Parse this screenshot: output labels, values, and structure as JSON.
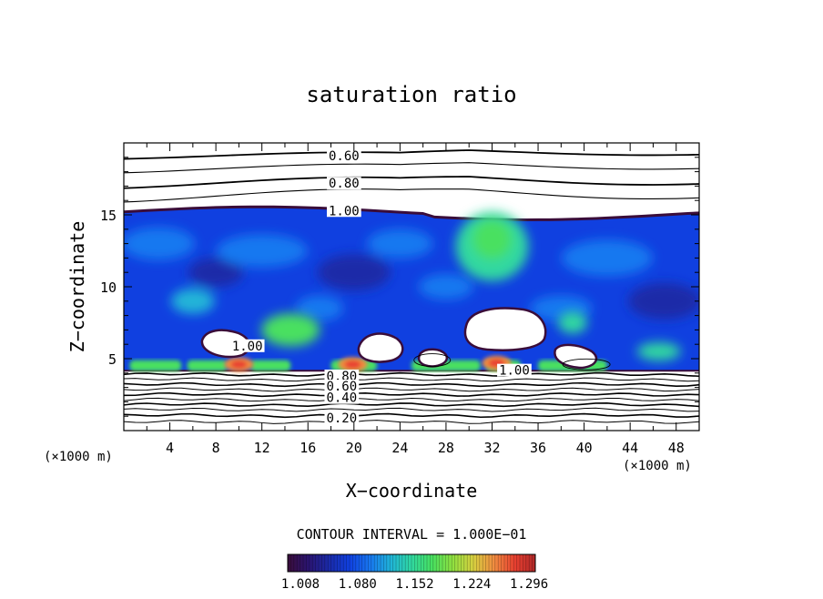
{
  "chart_data": {
    "type": "heatmap",
    "title": "saturation ratio",
    "xlabel": "X−coordinate",
    "ylabel": "Z−coordinate",
    "x_unit": "(×1000 m)",
    "y_unit": "(×1000 m)",
    "xlim": [
      0,
      50
    ],
    "ylim": [
      0,
      20
    ],
    "x_ticks": [
      "4",
      "8",
      "12",
      "16",
      "20",
      "24",
      "28",
      "32",
      "36",
      "40",
      "44",
      "48"
    ],
    "x_tick_values": [
      4,
      8,
      12,
      16,
      20,
      24,
      28,
      32,
      36,
      40,
      44,
      48
    ],
    "y_ticks": [
      "5",
      "10",
      "15"
    ],
    "y_tick_values": [
      5,
      10,
      15
    ],
    "contour_interval": "CONTOUR INTERVAL = 1.000E−01",
    "contour_labels": [
      {
        "text": "0.60",
        "x": 17.8,
        "z": 19.1
      },
      {
        "text": "0.80",
        "x": 17.8,
        "z": 17.2
      },
      {
        "text": "1.00",
        "x": 17.8,
        "z": 15.3
      },
      {
        "text": "1.00",
        "x": 9.4,
        "z": 5.9
      },
      {
        "text": "1.00",
        "x": 32.6,
        "z": 4.2
      },
      {
        "text": "0.80",
        "x": 17.6,
        "z": 3.8
      },
      {
        "text": "0.60",
        "x": 17.6,
        "z": 3.1
      },
      {
        "text": "0.40",
        "x": 17.6,
        "z": 2.3
      },
      {
        "text": "0.20",
        "x": 17.6,
        "z": 0.9
      }
    ],
    "colorbar": {
      "min": 1.008,
      "max": 1.32,
      "tick_labels": [
        "1.008",
        "1.080",
        "1.152",
        "1.224",
        "1.296"
      ],
      "tick_values": [
        1.008,
        1.08,
        1.152,
        1.224,
        1.296
      ],
      "colormap": [
        "#3a0d3a",
        "#2a1470",
        "#1a2aa8",
        "#1040e0",
        "#1878f0",
        "#20b4d8",
        "#30d8a0",
        "#48e060",
        "#90e040",
        "#d8d040",
        "#f08c40",
        "#e84030",
        "#b02828"
      ]
    },
    "cloud_top_z": 15.3,
    "cloud_base_z": 4.1,
    "features": [
      {
        "kind": "clear",
        "x": 32.5,
        "z": 7.7
      },
      {
        "kind": "clear",
        "x": 22.5,
        "z": 5.6
      },
      {
        "kind": "clear",
        "x": 9.0,
        "z": 6.0
      },
      {
        "kind": "moist",
        "x": 32.0,
        "z": 12.5,
        "value": 1.18
      },
      {
        "kind": "moist",
        "x": 14.5,
        "z": 7.0,
        "value": 1.17
      },
      {
        "kind": "peak",
        "x": 10.0,
        "z": 4.6,
        "value": 1.3
      },
      {
        "kind": "peak",
        "x": 19.9,
        "z": 4.6,
        "value": 1.3
      },
      {
        "kind": "peak",
        "x": 32.4,
        "z": 4.7,
        "value": 1.29
      }
    ]
  }
}
